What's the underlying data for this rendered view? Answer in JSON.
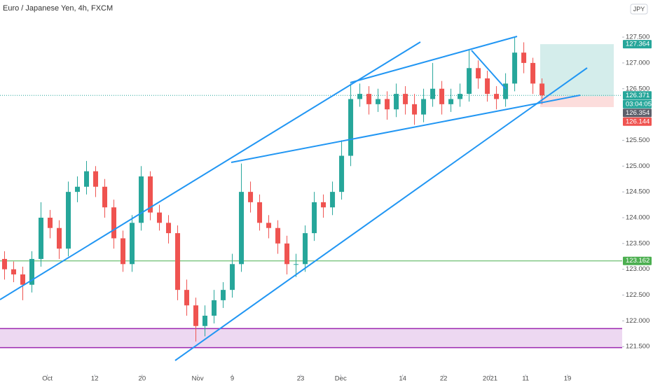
{
  "chart_data": {
    "type": "candlestick",
    "title": "Euro / Japanese Yen, 4h, FXCM",
    "currency": "JPY",
    "up_color": "#26a69a",
    "down_color": "#ef5350",
    "open": [
      123.2,
      123.0,
      122.9,
      122.7,
      123.2,
      124.0,
      123.8,
      123.4,
      124.5,
      124.6,
      124.9,
      124.6,
      124.2,
      123.6,
      123.1,
      123.9,
      124.8,
      124.1,
      123.9,
      123.7,
      122.6,
      122.3,
      121.9,
      122.1,
      122.4,
      122.6,
      123.1,
      124.5,
      124.3,
      123.9,
      123.8,
      123.5,
      123.1,
      123.1,
      123.7,
      124.3,
      124.2,
      124.5,
      125.2,
      126.3,
      126.4,
      126.2,
      126.3,
      126.1,
      126.4,
      126.2,
      126.0,
      126.3,
      126.5,
      126.2,
      126.3,
      126.4,
      126.9,
      126.7,
      126.4,
      126.3,
      126.6,
      127.2,
      127.0,
      126.6
    ],
    "high": [
      123.35,
      123.15,
      123.05,
      123.35,
      124.3,
      124.15,
      123.95,
      124.7,
      124.8,
      125.1,
      125.0,
      124.75,
      124.35,
      123.75,
      124.05,
      125.0,
      124.9,
      124.25,
      124.05,
      123.85,
      122.8,
      122.45,
      122.3,
      122.6,
      122.75,
      123.3,
      125.05,
      124.7,
      124.45,
      124.05,
      123.95,
      123.65,
      123.3,
      123.85,
      124.5,
      124.45,
      124.7,
      125.5,
      126.6,
      126.6,
      126.55,
      126.5,
      126.45,
      126.6,
      126.55,
      126.4,
      126.5,
      127.0,
      126.65,
      126.5,
      126.6,
      127.25,
      127.05,
      126.85,
      126.55,
      126.8,
      127.5,
      127.4,
      127.1,
      126.7
    ],
    "low": [
      122.8,
      122.75,
      122.4,
      122.55,
      123.05,
      123.6,
      123.2,
      123.25,
      124.3,
      124.45,
      124.4,
      124.0,
      123.4,
      122.95,
      122.95,
      123.75,
      123.95,
      123.75,
      123.5,
      122.4,
      122.1,
      121.6,
      121.7,
      121.95,
      122.25,
      122.45,
      122.95,
      124.1,
      123.75,
      123.6,
      123.3,
      122.9,
      122.85,
      122.95,
      123.55,
      124.0,
      124.05,
      124.35,
      125.0,
      126.15,
      126.0,
      126.05,
      125.9,
      125.95,
      126.0,
      125.8,
      125.85,
      126.15,
      126.0,
      126.05,
      126.15,
      126.25,
      126.5,
      126.25,
      126.1,
      126.15,
      126.45,
      126.8,
      126.4,
      126.2
    ],
    "close": [
      123.0,
      122.9,
      122.7,
      123.2,
      124.0,
      123.8,
      123.4,
      124.5,
      124.6,
      124.9,
      124.6,
      124.2,
      123.6,
      123.1,
      123.9,
      124.8,
      124.1,
      123.9,
      123.7,
      122.6,
      122.3,
      121.9,
      122.1,
      122.4,
      122.6,
      123.1,
      124.5,
      124.3,
      123.9,
      123.8,
      123.5,
      123.1,
      123.1,
      123.7,
      124.3,
      124.2,
      124.5,
      125.2,
      126.3,
      126.4,
      126.2,
      126.3,
      126.1,
      126.4,
      126.2,
      126.0,
      126.3,
      126.5,
      126.2,
      126.3,
      126.4,
      126.9,
      126.7,
      126.4,
      126.3,
      126.6,
      127.2,
      127.0,
      126.6,
      126.371
    ],
    "xlim": [
      -0.5,
      67.8
    ],
    "xticks": [
      {
        "value": 4.7,
        "label": "Oct"
      },
      {
        "value": 9.9,
        "label": "12"
      },
      {
        "value": 15.1,
        "label": "20"
      },
      {
        "value": 21.2,
        "label": "Nov"
      },
      {
        "value": 25.0,
        "label": "9"
      },
      {
        "value": 32.5,
        "label": "23"
      },
      {
        "value": 36.9,
        "label": "Dec"
      },
      {
        "value": 43.7,
        "label": "14"
      },
      {
        "value": 48.2,
        "label": "22"
      },
      {
        "value": 53.3,
        "label": "2021"
      },
      {
        "value": 57.2,
        "label": "11"
      },
      {
        "value": 61.8,
        "label": "19"
      }
    ],
    "ylim": [
      120.96,
      128.22
    ],
    "yticks": [
      {
        "value": 121.5,
        "label": "121.500"
      },
      {
        "value": 122.0,
        "label": "122.000"
      },
      {
        "value": 122.5,
        "label": "122.500"
      },
      {
        "value": 123.0,
        "label": "123.000"
      },
      {
        "value": 123.5,
        "label": "123.500"
      },
      {
        "value": 124.0,
        "label": "124.000"
      },
      {
        "value": 124.5,
        "label": "124.500"
      },
      {
        "value": 125.0,
        "label": "125.000"
      },
      {
        "value": 125.5,
        "label": "125.500"
      },
      {
        "value": 126.5,
        "label": "126.500"
      },
      {
        "value": 127.0,
        "label": "127.000"
      },
      {
        "value": 127.5,
        "label": "127.500"
      }
    ],
    "price_labels": [
      {
        "value": 127.364,
        "color": "#26a69a"
      },
      {
        "value": 126.371,
        "color": "#26a69a"
      },
      {
        "value": 126.354,
        "color": "#5d606b"
      },
      {
        "value": 126.144,
        "color": "#ef5350"
      },
      {
        "value": 123.162,
        "color": "#4caf50"
      }
    ],
    "countdown": "03:04:05",
    "zones": [
      {
        "from": 121.48,
        "to": 121.85,
        "color": "#9c27b0"
      }
    ]
  }
}
